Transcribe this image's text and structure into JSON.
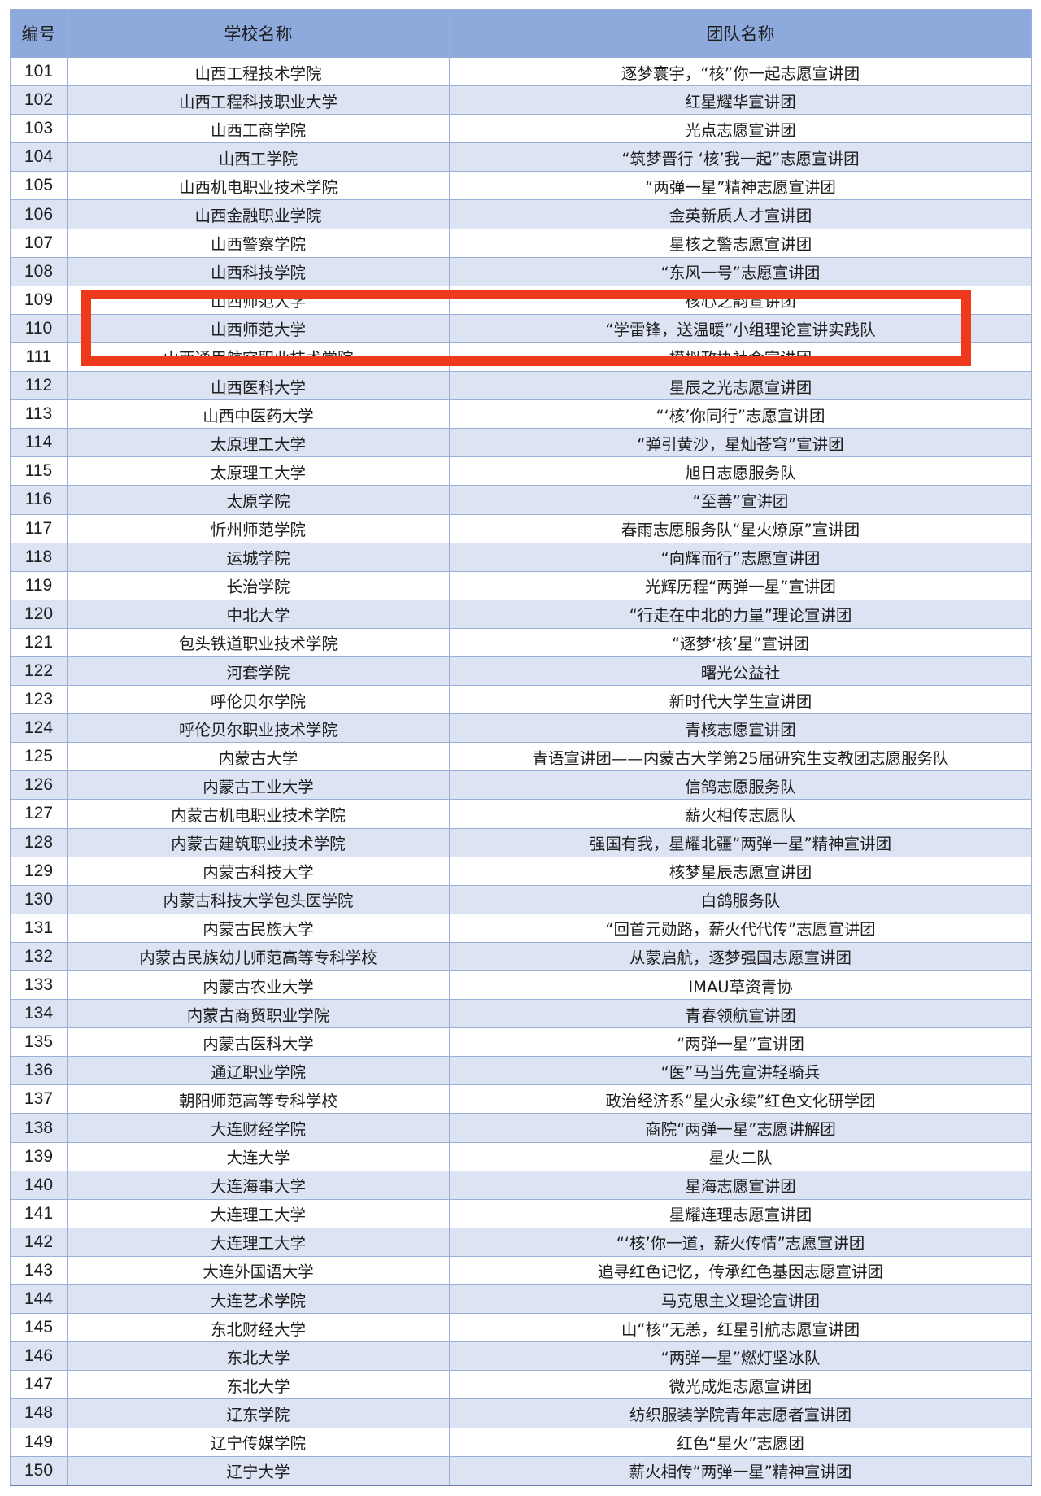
{
  "table": {
    "headers": [
      "编号",
      "学校名称",
      "团队名称"
    ],
    "rows": [
      [
        "101",
        "山西工程技术学院",
        "逐梦寰宇，“核”你一起志愿宣讲团"
      ],
      [
        "102",
        "山西工程科技职业大学",
        "红星耀华宣讲团"
      ],
      [
        "103",
        "山西工商学院",
        "光点志愿宣讲团"
      ],
      [
        "104",
        "山西工学院",
        "“筑梦晋行 ‘核’我一起”志愿宣讲团"
      ],
      [
        "105",
        "山西机电职业技术学院",
        "“两弹一星”精神志愿宣讲团"
      ],
      [
        "106",
        "山西金融职业学院",
        "金英新质人才宣讲团"
      ],
      [
        "107",
        "山西警察学院",
        "星核之警志愿宣讲团"
      ],
      [
        "108",
        "山西科技学院",
        "“东风一号”志愿宣讲团"
      ],
      [
        "109",
        "山西师范大学",
        "核心之韵宣讲团"
      ],
      [
        "110",
        "山西师范大学",
        "“学雷锋，送温暖”小组理论宣讲实践队"
      ],
      [
        "111",
        "山西通用航空职业技术学院",
        "模拟政协社会宣讲团"
      ],
      [
        "112",
        "山西医科大学",
        "星辰之光志愿宣讲团"
      ],
      [
        "113",
        "山西中医药大学",
        "“‘核’你同行”志愿宣讲团"
      ],
      [
        "114",
        "太原理工大学",
        "“弹引黄沙，星灿苍穹”宣讲团"
      ],
      [
        "115",
        "太原理工大学",
        "旭日志愿服务队"
      ],
      [
        "116",
        "太原学院",
        "“至善”宣讲团"
      ],
      [
        "117",
        "忻州师范学院",
        "春雨志愿服务队“星火燎原”宣讲团"
      ],
      [
        "118",
        "运城学院",
        "“向辉而行”志愿宣讲团"
      ],
      [
        "119",
        "长治学院",
        "光辉历程“两弹一星”宣讲团"
      ],
      [
        "120",
        "中北大学",
        "“行走在中北的力量”理论宣讲团"
      ],
      [
        "121",
        "包头铁道职业技术学院",
        "“逐梦‘核’星”宣讲团"
      ],
      [
        "122",
        "河套学院",
        "曙光公益社"
      ],
      [
        "123",
        "呼伦贝尔学院",
        "新时代大学生宣讲团"
      ],
      [
        "124",
        "呼伦贝尔职业技术学院",
        "青核志愿宣讲团"
      ],
      [
        "125",
        "内蒙古大学",
        "青语宣讲团——内蒙古大学第25届研究生支教团志愿服务队"
      ],
      [
        "126",
        "内蒙古工业大学",
        "信鸽志愿服务队"
      ],
      [
        "127",
        "内蒙古机电职业技术学院",
        "薪火相传志愿队"
      ],
      [
        "128",
        "内蒙古建筑职业技术学院",
        "强国有我，星耀北疆“两弹一星”精神宣讲团"
      ],
      [
        "129",
        "内蒙古科技大学",
        "核梦星辰志愿宣讲团"
      ],
      [
        "130",
        "内蒙古科技大学包头医学院",
        "白鸽服务队"
      ],
      [
        "131",
        "内蒙古民族大学",
        "“回首元勋路，薪火代代传”志愿宣讲团"
      ],
      [
        "132",
        "内蒙古民族幼儿师范高等专科学校",
        "从蒙启航，逐梦强国志愿宣讲团"
      ],
      [
        "133",
        "内蒙古农业大学",
        "IMAU草资青协"
      ],
      [
        "134",
        "内蒙古商贸职业学院",
        "青春领航宣讲团"
      ],
      [
        "135",
        "内蒙古医科大学",
        "“两弹一星”宣讲团"
      ],
      [
        "136",
        "通辽职业学院",
        "“医”马当先宣讲轻骑兵"
      ],
      [
        "137",
        "朝阳师范高等专科学校",
        "政治经济系“星火永续”红色文化研学团"
      ],
      [
        "138",
        "大连财经学院",
        "商院“两弹一星”志愿讲解团"
      ],
      [
        "139",
        "大连大学",
        "星火二队"
      ],
      [
        "140",
        "大连海事大学",
        "星海志愿宣讲团"
      ],
      [
        "141",
        "大连理工大学",
        "星耀连理志愿宣讲团"
      ],
      [
        "142",
        "大连理工大学",
        "“‘核’你一道，薪火传情”志愿宣讲团"
      ],
      [
        "143",
        "大连外国语大学",
        "追寻红色记忆，传承红色基因志愿宣讲团"
      ],
      [
        "144",
        "大连艺术学院",
        "马克思主义理论宣讲团"
      ],
      [
        "145",
        "东北财经大学",
        "山“核”无恙，红星引航志愿宣讲团"
      ],
      [
        "146",
        "东北大学",
        "“两弹一星”燃灯坚冰队"
      ],
      [
        "147",
        "东北大学",
        "微光成炬志愿宣讲团"
      ],
      [
        "148",
        "辽东学院",
        "纺织服装学院青年志愿者宣讲团"
      ],
      [
        "149",
        "辽宁传媒学院",
        "红色“星火”志愿团"
      ],
      [
        "150",
        "辽宁大学",
        "薪火相传“两弹一星”精神宣讲团"
      ]
    ]
  },
  "highlight": {
    "color": "#ee3a1c",
    "rows": [
      "109",
      "110",
      "111"
    ]
  },
  "colors": {
    "header_bg": "#8ea9dc",
    "row_alt_bg": "#dce3f3"
  }
}
